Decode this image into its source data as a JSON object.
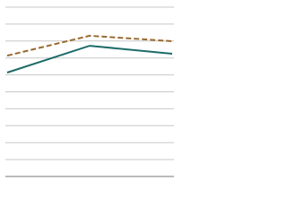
{
  "chart_data": {
    "type": "line",
    "categories": [
      null,
      null,
      null
    ],
    "series": [
      {
        "color": "#1d6b68",
        "dash": false,
        "values": [
          61.4,
          77.2,
          72.5
        ]
      },
      {
        "color": "#9a6a30",
        "dash": true,
        "values": [
          71.4,
          83.1,
          79.9
        ]
      }
    ],
    "ylim": [
      0,
      100
    ],
    "yticks": [
      10,
      20,
      30,
      40,
      50,
      60,
      70,
      80,
      90,
      100
    ],
    "grid": true
  }
}
